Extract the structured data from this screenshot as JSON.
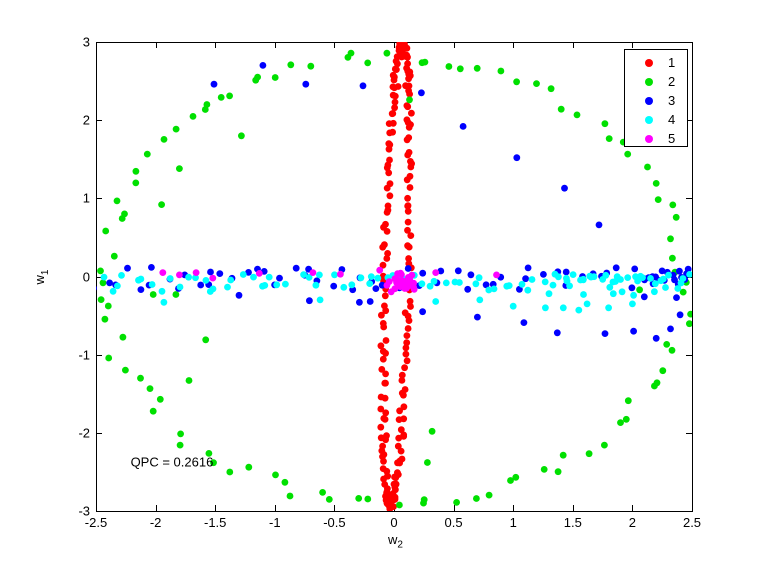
{
  "chart_data": {
    "type": "scatter",
    "title": "",
    "xlabel": {
      "base": "w",
      "sub": "2"
    },
    "ylabel": {
      "base": "w",
      "sub": "1"
    },
    "xlim": [
      -2.5,
      2.5
    ],
    "ylim": [
      -3,
      3
    ],
    "xticks": [
      -2.5,
      -2,
      -1.5,
      -1,
      -0.5,
      0,
      0.5,
      1,
      1.5,
      2,
      2.5
    ],
    "xtick_labels": [
      "-2.5",
      "-2",
      "-1.5",
      "-1",
      "-0.5",
      "0",
      "0.5",
      "1",
      "1.5",
      "2",
      "2.5"
    ],
    "yticks": [
      -3,
      -2,
      -1,
      0,
      1,
      2,
      3
    ],
    "ytick_labels": [
      "-3",
      "-2",
      "-1",
      "0",
      "1",
      "2",
      "3"
    ],
    "grid": false,
    "box": true,
    "marker_radius": 3.4,
    "annotation": {
      "text": "QPC = 0.2616",
      "x": -2.21,
      "y": -2.37
    },
    "legend": {
      "position": "top-right",
      "entries": [
        {
          "label": "1",
          "color": "#ff0000"
        },
        {
          "label": "2",
          "color": "#00e000"
        },
        {
          "label": "3",
          "color": "#0000ff"
        },
        {
          "label": "4",
          "color": "#00ffff"
        },
        {
          "label": "5",
          "color": "#ff00ff"
        }
      ]
    },
    "series": [
      {
        "name": "1",
        "color": "#ff0000",
        "description": "thin near-vertical ellipse centered at origin",
        "parts": [
          {
            "kind": "ellipse",
            "n": 210,
            "cx": 0.02,
            "cy": 0,
            "rx": 0.1,
            "ry": 2.92,
            "tilt": 0.05,
            "jx": 0.025,
            "jy": 0.06,
            "seed": 7
          }
        ]
      },
      {
        "name": "2",
        "color": "#00e000",
        "description": "large ellipse spanning the axes plus inner strays",
        "parts": [
          {
            "kind": "ellipse",
            "n": 96,
            "cx": 0,
            "cy": -0.05,
            "rx": 2.44,
            "ry": 2.86,
            "tilt": 0,
            "jx": 0.09,
            "jy": 0.09,
            "seed": 13
          },
          {
            "kind": "points",
            "pts": [
              [
                -1.57,
                2.2
              ],
              [
                -1.28,
                1.8
              ],
              [
                -1.8,
                1.38
              ],
              [
                -1.95,
                0.92
              ],
              [
                -1.83,
                -0.23
              ],
              [
                -2.02,
                -0.23
              ],
              [
                -1.58,
                -0.81
              ],
              [
                -1.72,
                -1.33
              ],
              [
                0.13,
                2.26
              ],
              [
                0.32,
                -1.98
              ],
              [
                0.28,
                -2.38
              ],
              [
                2.06,
                -0.17
              ]
            ]
          }
        ]
      },
      {
        "name": "3",
        "color": "#0000ff",
        "description": "horizontal band near y=0 plus descending diagonal strays",
        "parts": [
          {
            "kind": "band",
            "n": 62,
            "x0": -2.48,
            "x1": 2.46,
            "y0": -0.17,
            "y1": 0.12,
            "jx": 0.05,
            "seed": 23
          },
          {
            "kind": "band",
            "n": 14,
            "x0": 2.12,
            "x1": 2.48,
            "y0": -0.05,
            "y1": 0.09,
            "jx": 0.03,
            "seed": 29
          },
          {
            "kind": "points",
            "pts": [
              [
                -1.51,
                2.46
              ],
              [
                -1.1,
                2.7
              ],
              [
                -0.74,
                2.46
              ],
              [
                -0.26,
                2.44
              ],
              [
                0.23,
                2.35
              ],
              [
                0.58,
                1.92
              ],
              [
                1.03,
                1.52
              ],
              [
                1.43,
                1.13
              ],
              [
                1.72,
                0.66
              ],
              [
                0.7,
                -0.52
              ],
              [
                1.09,
                -0.59
              ],
              [
                1.37,
                -0.72
              ],
              [
                1.77,
                -0.73
              ],
              [
                2.01,
                -0.7
              ],
              [
                2.2,
                -0.79
              ],
              [
                2.32,
                -0.67
              ],
              [
                2.4,
                -0.49
              ],
              [
                2.1,
                -0.26
              ],
              [
                2.37,
                -0.27
              ],
              [
                -1.3,
                -0.24
              ],
              [
                -0.71,
                -0.31
              ],
              [
                -0.29,
                -0.33
              ],
              [
                -0.2,
                -0.32
              ],
              [
                0.24,
                -0.45
              ]
            ]
          }
        ]
      },
      {
        "name": "4",
        "color": "#00ffff",
        "description": "horizontal band slightly below y=0 with dropouts",
        "parts": [
          {
            "kind": "band",
            "n": 72,
            "x0": -2.45,
            "x1": 2.44,
            "y0": -0.2,
            "y1": 0.03,
            "jx": 0.05,
            "seed": 31
          },
          {
            "kind": "band",
            "n": 20,
            "x0": 1.35,
            "x1": 2.44,
            "y0": -0.1,
            "y1": 0.03,
            "jx": 0.03,
            "seed": 37
          },
          {
            "kind": "points",
            "pts": [
              [
                -1.93,
                -0.33
              ],
              [
                -0.62,
                -0.3
              ],
              [
                0.35,
                -0.32
              ],
              [
                0.72,
                -0.3
              ],
              [
                1.0,
                -0.38
              ],
              [
                1.27,
                -0.4
              ],
              [
                1.42,
                -0.4
              ],
              [
                1.55,
                -0.43
              ],
              [
                1.62,
                -0.35
              ],
              [
                1.8,
                -0.4
              ],
              [
                2.0,
                -0.35
              ],
              [
                1.3,
                -0.22
              ],
              [
                1.59,
                -0.23
              ],
              [
                1.84,
                -0.22
              ],
              [
                2.01,
                -0.24
              ]
            ]
          }
        ]
      },
      {
        "name": "5",
        "color": "#ff00ff",
        "description": "dense blob at origin plus sparse band strays",
        "parts": [
          {
            "kind": "blob",
            "n": 40,
            "cx": 0.07,
            "cy": -0.07,
            "sx": 0.13,
            "sy": 0.1,
            "seed": 41
          },
          {
            "kind": "points",
            "pts": [
              [
                -1.94,
                0.05
              ],
              [
                -1.8,
                0.02
              ],
              [
                -1.66,
                0.05
              ],
              [
                -1.52,
                -0.02
              ],
              [
                -1.13,
                0.04
              ],
              [
                -0.68,
                0.05
              ],
              [
                -0.45,
                0.03
              ],
              [
                -0.12,
                0.08
              ],
              [
                0.35,
                0.05
              ],
              [
                0.86,
                0.02
              ]
            ]
          }
        ]
      }
    ]
  }
}
